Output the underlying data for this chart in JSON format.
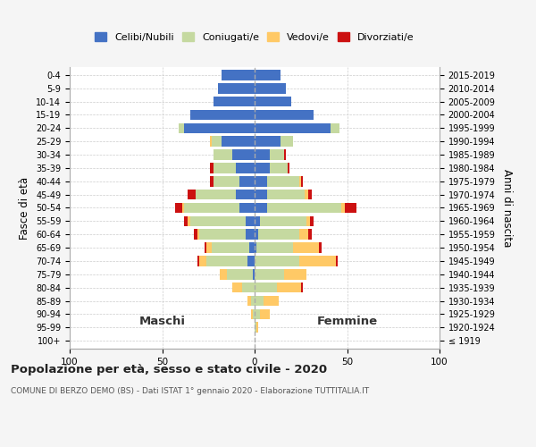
{
  "age_groups": [
    "100+",
    "95-99",
    "90-94",
    "85-89",
    "80-84",
    "75-79",
    "70-74",
    "65-69",
    "60-64",
    "55-59",
    "50-54",
    "45-49",
    "40-44",
    "35-39",
    "30-34",
    "25-29",
    "20-24",
    "15-19",
    "10-14",
    "5-9",
    "0-4"
  ],
  "birth_years": [
    "≤ 1919",
    "1920-1924",
    "1925-1929",
    "1930-1934",
    "1935-1939",
    "1940-1944",
    "1945-1949",
    "1950-1954",
    "1955-1959",
    "1960-1964",
    "1965-1969",
    "1970-1974",
    "1975-1979",
    "1980-1984",
    "1985-1989",
    "1990-1994",
    "1995-1999",
    "2000-2004",
    "2005-2009",
    "2010-2014",
    "2015-2019"
  ],
  "colors": {
    "celibe": "#4472c4",
    "coniugato": "#c5d9a0",
    "vedovo": "#ffc966",
    "divorziato": "#cc1111"
  },
  "maschi": {
    "celibe": [
      0,
      0,
      0,
      0,
      0,
      1,
      4,
      3,
      5,
      5,
      8,
      10,
      8,
      10,
      12,
      18,
      38,
      35,
      22,
      20,
      18
    ],
    "coniugato": [
      0,
      0,
      1,
      2,
      7,
      14,
      22,
      20,
      25,
      30,
      30,
      22,
      14,
      12,
      10,
      5,
      3,
      0,
      0,
      0,
      0
    ],
    "vedovo": [
      0,
      0,
      1,
      2,
      5,
      4,
      4,
      3,
      1,
      1,
      1,
      0,
      0,
      0,
      0,
      1,
      0,
      0,
      0,
      0,
      0
    ],
    "divorziato": [
      0,
      0,
      0,
      0,
      0,
      0,
      1,
      1,
      2,
      2,
      4,
      4,
      2,
      2,
      0,
      0,
      0,
      0,
      0,
      0,
      0
    ]
  },
  "femmine": {
    "nubile": [
      0,
      0,
      0,
      0,
      0,
      0,
      0,
      1,
      2,
      3,
      7,
      7,
      7,
      8,
      8,
      14,
      41,
      32,
      20,
      17,
      14
    ],
    "coniugata": [
      0,
      1,
      3,
      5,
      12,
      16,
      24,
      20,
      22,
      25,
      40,
      20,
      17,
      10,
      8,
      7,
      5,
      0,
      0,
      0,
      0
    ],
    "vedova": [
      0,
      1,
      5,
      8,
      13,
      12,
      20,
      14,
      5,
      2,
      2,
      2,
      1,
      0,
      0,
      0,
      0,
      0,
      0,
      0,
      0
    ],
    "divorziata": [
      0,
      0,
      0,
      0,
      1,
      0,
      1,
      1,
      2,
      2,
      6,
      2,
      1,
      1,
      1,
      0,
      0,
      0,
      0,
      0,
      0
    ]
  },
  "xlim": [
    -100,
    100
  ],
  "xticks": [
    -100,
    -50,
    0,
    50,
    100
  ],
  "xtick_labels": [
    "100",
    "50",
    "0",
    "50",
    "100"
  ],
  "title": "Popolazione per età, sesso e stato civile - 2020",
  "subtitle": "COMUNE DI BERZO DEMO (BS) - Dati ISTAT 1° gennaio 2020 - Elaborazione TUTTITALIA.IT",
  "ylabel_left": "Fasce di età",
  "ylabel_right": "Anni di nascita",
  "maschi_label": "Maschi",
  "femmine_label": "Femmine",
  "legend_labels": [
    "Celibi/Nubili",
    "Coniugati/e",
    "Vedovi/e",
    "Divorziati/e"
  ],
  "bg_color": "#f5f5f5",
  "plot_bg_color": "#ffffff"
}
